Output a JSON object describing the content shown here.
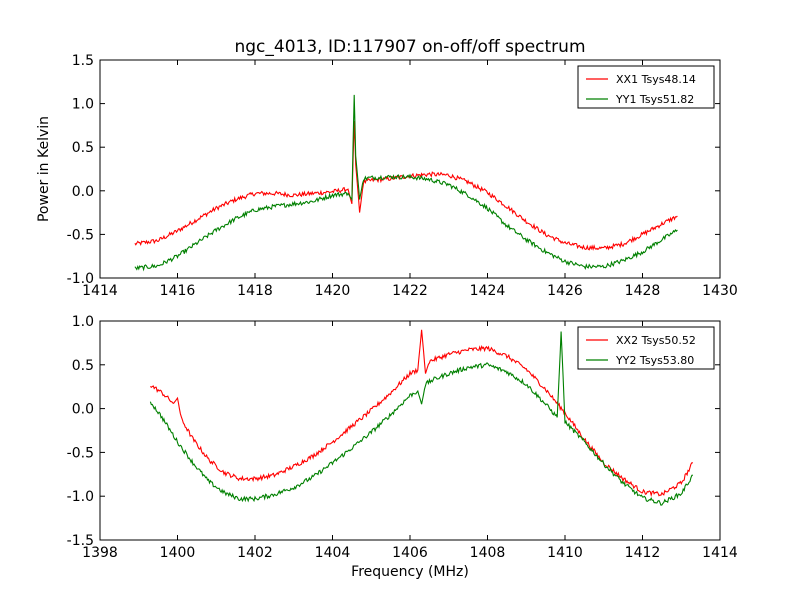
{
  "chart_data": [
    {
      "type": "line",
      "title": "ngc_4013, ID:117907 on-off/off spectrum",
      "xlabel": "",
      "ylabel": "Power in Kelvin",
      "xlim": [
        1414,
        1430
      ],
      "ylim": [
        -1.0,
        1.5
      ],
      "xticks": [
        "1414",
        "1416",
        "1418",
        "1420",
        "1422",
        "1424",
        "1426",
        "1428",
        "1430"
      ],
      "yticks": [
        "-1.0",
        "-0.5",
        "0.0",
        "0.5",
        "1.0",
        "1.5"
      ],
      "grid": false,
      "legend_position": "top-right",
      "series": [
        {
          "name": "XX1 Tsys48.14",
          "color": "#ff0000",
          "x": [
            1414.9,
            1415.5,
            1416.0,
            1416.5,
            1417.0,
            1417.5,
            1418.0,
            1418.5,
            1419.0,
            1419.5,
            1420.0,
            1420.4,
            1420.5,
            1420.56,
            1420.6,
            1420.7,
            1420.8,
            1421.0,
            1421.5,
            1422.0,
            1422.5,
            1423.0,
            1423.5,
            1424.0,
            1424.5,
            1425.0,
            1425.5,
            1426.0,
            1426.5,
            1427.0,
            1427.5,
            1428.0,
            1428.5,
            1428.9
          ],
          "y": [
            -0.61,
            -0.57,
            -0.46,
            -0.33,
            -0.2,
            -0.1,
            -0.03,
            -0.03,
            -0.05,
            -0.03,
            -0.01,
            0.02,
            -0.15,
            0.8,
            0.3,
            -0.25,
            0.1,
            0.12,
            0.14,
            0.17,
            0.19,
            0.18,
            0.1,
            -0.02,
            -0.18,
            -0.35,
            -0.5,
            -0.6,
            -0.65,
            -0.66,
            -0.61,
            -0.5,
            -0.38,
            -0.29
          ]
        },
        {
          "name": "YY1 Tsys51.82",
          "color": "#008000",
          "x": [
            1414.9,
            1415.5,
            1416.0,
            1416.5,
            1417.0,
            1417.5,
            1418.0,
            1418.5,
            1419.0,
            1419.5,
            1420.0,
            1420.4,
            1420.5,
            1420.56,
            1420.6,
            1420.7,
            1420.8,
            1421.0,
            1421.5,
            1422.0,
            1422.5,
            1423.0,
            1423.5,
            1424.0,
            1424.5,
            1425.0,
            1425.5,
            1426.0,
            1426.5,
            1427.0,
            1427.5,
            1428.0,
            1428.5,
            1428.9
          ],
          "y": [
            -0.89,
            -0.86,
            -0.75,
            -0.6,
            -0.45,
            -0.32,
            -0.22,
            -0.18,
            -0.15,
            -0.12,
            -0.05,
            -0.03,
            -0.1,
            1.1,
            0.4,
            -0.1,
            0.14,
            0.15,
            0.16,
            0.16,
            0.13,
            0.07,
            -0.05,
            -0.2,
            -0.4,
            -0.56,
            -0.7,
            -0.81,
            -0.87,
            -0.87,
            -0.8,
            -0.7,
            -0.56,
            -0.45
          ]
        }
      ]
    },
    {
      "type": "line",
      "title": "",
      "xlabel": "Frequency (MHz)",
      "ylabel": "",
      "xlim": [
        1398,
        1414
      ],
      "ylim": [
        -1.5,
        1.0
      ],
      "xticks": [
        "1398",
        "1400",
        "1402",
        "1404",
        "1406",
        "1408",
        "1410",
        "1412",
        "1414"
      ],
      "yticks": [
        "-1.5",
        "-1.0",
        "-0.5",
        "0.0",
        "0.5",
        "1.0"
      ],
      "grid": false,
      "legend_position": "top-right",
      "series": [
        {
          "name": "XX2 Tsys50.52",
          "color": "#ff0000",
          "x": [
            1399.3,
            1399.6,
            1399.9,
            1400.0,
            1400.1,
            1400.4,
            1400.8,
            1401.2,
            1401.6,
            1402.0,
            1402.5,
            1403.0,
            1403.5,
            1404.0,
            1404.5,
            1405.0,
            1405.5,
            1406.0,
            1406.2,
            1406.3,
            1406.4,
            1406.5,
            1407.0,
            1407.5,
            1408.0,
            1408.5,
            1409.0,
            1409.5,
            1410.0,
            1410.5,
            1411.0,
            1411.5,
            1412.0,
            1412.5,
            1413.0,
            1413.3
          ],
          "y": [
            0.27,
            0.18,
            0.06,
            0.12,
            -0.12,
            -0.35,
            -0.58,
            -0.73,
            -0.8,
            -0.8,
            -0.76,
            -0.66,
            -0.54,
            -0.38,
            -0.2,
            -0.02,
            0.18,
            0.4,
            0.44,
            0.9,
            0.4,
            0.54,
            0.62,
            0.67,
            0.69,
            0.6,
            0.45,
            0.22,
            -0.05,
            -0.35,
            -0.62,
            -0.8,
            -0.95,
            -0.98,
            -0.85,
            -0.62
          ]
        },
        {
          "name": "YY2 Tsys53.80",
          "color": "#008000",
          "x": [
            1399.3,
            1399.6,
            1400.0,
            1400.4,
            1400.8,
            1401.2,
            1401.6,
            1402.0,
            1402.5,
            1403.0,
            1403.5,
            1404.0,
            1404.5,
            1405.0,
            1405.5,
            1406.0,
            1406.2,
            1406.3,
            1406.4,
            1406.6,
            1407.0,
            1407.5,
            1408.0,
            1408.5,
            1409.0,
            1409.5,
            1409.8,
            1409.9,
            1410.0,
            1410.5,
            1411.0,
            1411.5,
            1412.0,
            1412.5,
            1413.0,
            1413.3
          ],
          "y": [
            0.08,
            -0.1,
            -0.38,
            -0.62,
            -0.83,
            -0.96,
            -1.03,
            -1.03,
            -0.98,
            -0.9,
            -0.78,
            -0.62,
            -0.45,
            -0.27,
            -0.07,
            0.15,
            0.2,
            0.05,
            0.28,
            0.33,
            0.4,
            0.47,
            0.5,
            0.42,
            0.28,
            0.05,
            -0.1,
            0.88,
            -0.15,
            -0.38,
            -0.63,
            -0.85,
            -1.02,
            -1.08,
            -0.97,
            -0.76
          ]
        }
      ]
    }
  ]
}
